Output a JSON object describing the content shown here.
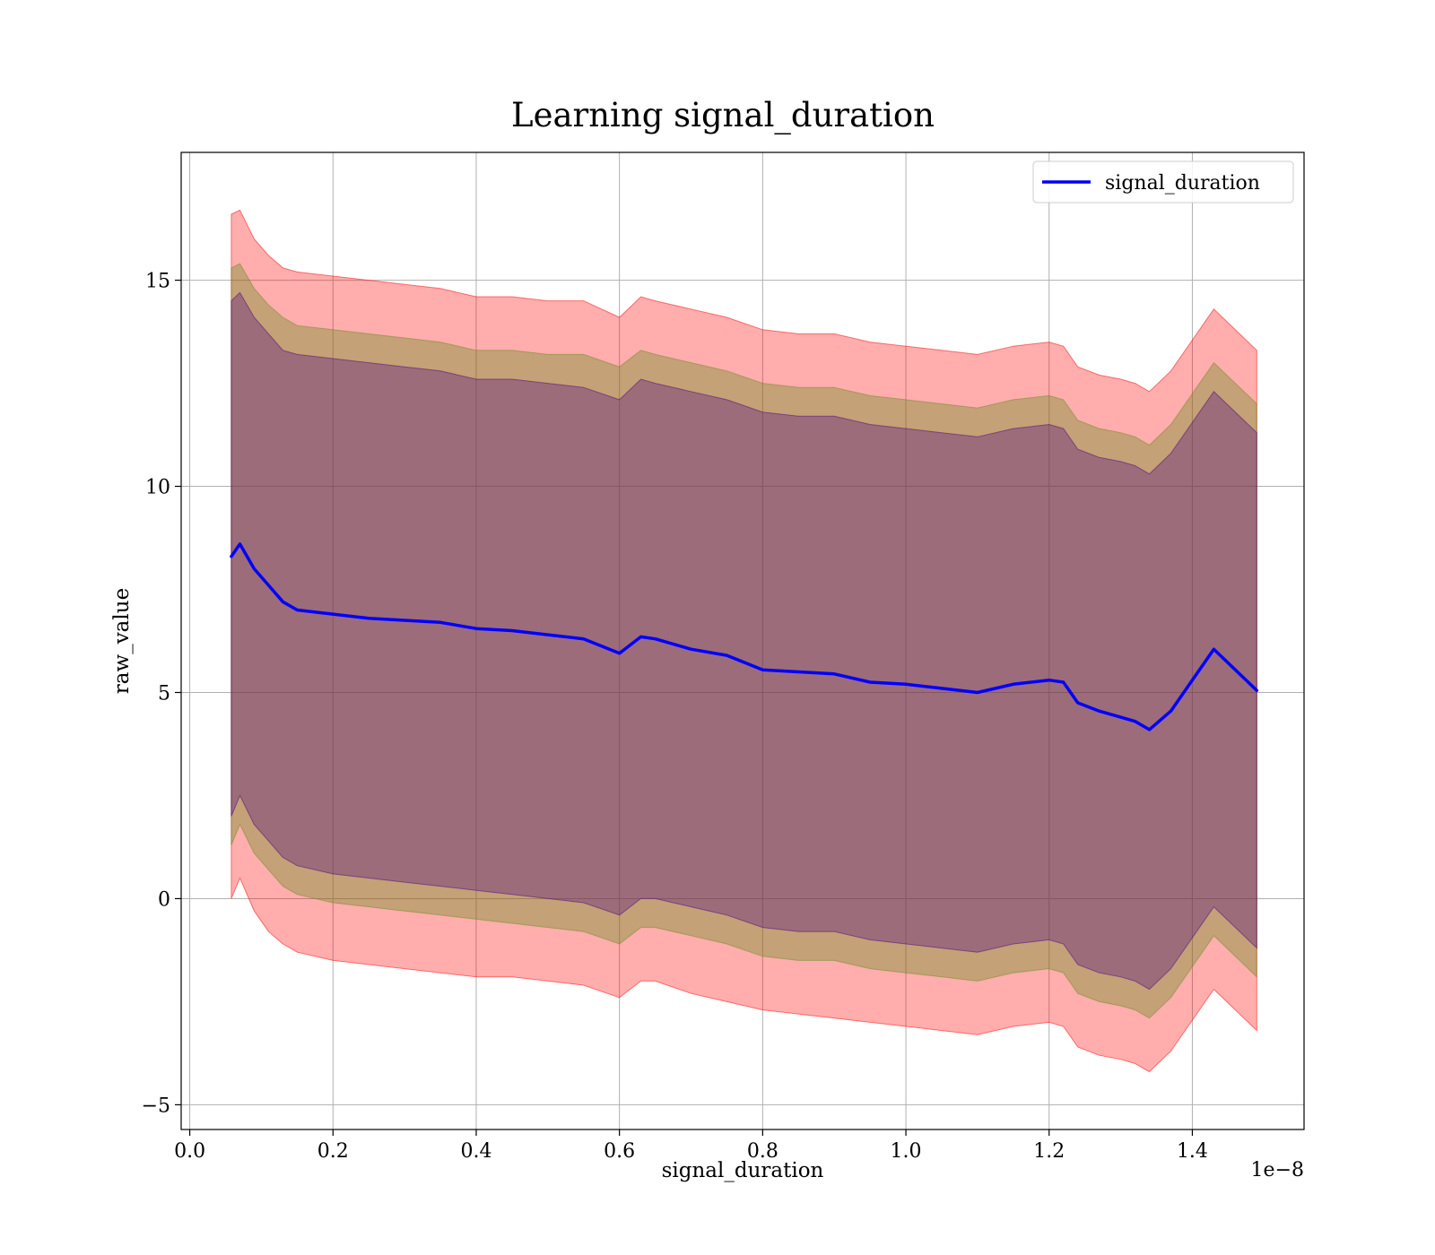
{
  "chart_data": {
    "type": "line",
    "title": "Learning signal_duration",
    "xlabel": "signal_duration",
    "ylabel": "raw_value",
    "x_offset_label": "1e−8",
    "x_scale": 1e-08,
    "xlim": [
      -0.012,
      1.556
    ],
    "ylim": [
      -5.6,
      18.1
    ],
    "x_ticks": [
      0.0,
      0.2,
      0.4,
      0.6,
      0.8,
      1.0,
      1.2,
      1.4
    ],
    "x_tick_labels": [
      "0.0",
      "0.2",
      "0.4",
      "0.6",
      "0.8",
      "1.0",
      "1.2",
      "1.4"
    ],
    "y_ticks": [
      -5,
      0,
      5,
      10,
      15
    ],
    "y_tick_labels": [
      "−5",
      "0",
      "5",
      "10",
      "15"
    ],
    "grid": true,
    "legend_position": "top-right",
    "x": [
      0.058,
      0.07,
      0.09,
      0.11,
      0.13,
      0.15,
      0.2,
      0.25,
      0.3,
      0.35,
      0.4,
      0.45,
      0.5,
      0.55,
      0.6,
      0.63,
      0.65,
      0.7,
      0.75,
      0.8,
      0.85,
      0.9,
      0.95,
      1.0,
      1.05,
      1.1,
      1.15,
      1.2,
      1.22,
      1.24,
      1.27,
      1.3,
      1.32,
      1.34,
      1.37,
      1.43,
      1.49
    ],
    "series": [
      {
        "name": "signal_duration",
        "color": "#0000ff",
        "values": [
          8.3,
          8.6,
          8.0,
          7.6,
          7.2,
          7.0,
          6.9,
          6.8,
          6.75,
          6.7,
          6.55,
          6.5,
          6.4,
          6.3,
          5.95,
          6.35,
          6.3,
          6.05,
          5.9,
          5.55,
          5.5,
          5.45,
          5.25,
          5.2,
          5.1,
          5.0,
          5.2,
          5.3,
          5.25,
          4.75,
          4.55,
          4.4,
          4.3,
          4.1,
          4.55,
          6.05,
          5.05
        ]
      }
    ],
    "bands": [
      {
        "color": "#ff0000",
        "opacity": 0.32,
        "upper": [
          16.6,
          16.7,
          16.0,
          15.6,
          15.3,
          15.2,
          15.1,
          15.0,
          14.9,
          14.8,
          14.6,
          14.6,
          14.5,
          14.5,
          14.1,
          14.6,
          14.5,
          14.3,
          14.1,
          13.8,
          13.7,
          13.7,
          13.5,
          13.4,
          13.3,
          13.2,
          13.4,
          13.5,
          13.4,
          12.9,
          12.7,
          12.6,
          12.5,
          12.3,
          12.8,
          14.3,
          13.3
        ],
        "lower": [
          0.0,
          0.5,
          -0.3,
          -0.8,
          -1.1,
          -1.3,
          -1.5,
          -1.6,
          -1.7,
          -1.8,
          -1.9,
          -1.9,
          -2.0,
          -2.1,
          -2.4,
          -2.0,
          -2.0,
          -2.3,
          -2.5,
          -2.7,
          -2.8,
          -2.9,
          -3.0,
          -3.1,
          -3.2,
          -3.3,
          -3.1,
          -3.0,
          -3.1,
          -3.6,
          -3.8,
          -3.9,
          -4.0,
          -4.2,
          -3.7,
          -2.2,
          -3.2
        ]
      },
      {
        "color": "#6b8e23",
        "opacity": 0.4,
        "upper": [
          15.3,
          15.4,
          14.8,
          14.4,
          14.1,
          13.9,
          13.8,
          13.7,
          13.6,
          13.5,
          13.3,
          13.3,
          13.2,
          13.2,
          12.9,
          13.3,
          13.2,
          13.0,
          12.8,
          12.5,
          12.4,
          12.4,
          12.2,
          12.1,
          12.0,
          11.9,
          12.1,
          12.2,
          12.1,
          11.6,
          11.4,
          11.3,
          11.2,
          11.0,
          11.5,
          13.0,
          12.0
        ],
        "lower": [
          1.3,
          1.8,
          1.1,
          0.7,
          0.3,
          0.1,
          -0.1,
          -0.2,
          -0.3,
          -0.4,
          -0.5,
          -0.6,
          -0.7,
          -0.8,
          -1.1,
          -0.7,
          -0.7,
          -0.9,
          -1.1,
          -1.4,
          -1.5,
          -1.5,
          -1.7,
          -1.8,
          -1.9,
          -2.0,
          -1.8,
          -1.7,
          -1.8,
          -2.3,
          -2.5,
          -2.6,
          -2.7,
          -2.9,
          -2.4,
          -0.9,
          -1.9
        ]
      },
      {
        "color": "#4b0082",
        "opacity": 0.33,
        "upper": [
          14.5,
          14.7,
          14.1,
          13.7,
          13.3,
          13.2,
          13.1,
          13.0,
          12.9,
          12.8,
          12.6,
          12.6,
          12.5,
          12.4,
          12.1,
          12.6,
          12.5,
          12.3,
          12.1,
          11.8,
          11.7,
          11.7,
          11.5,
          11.4,
          11.3,
          11.2,
          11.4,
          11.5,
          11.4,
          10.9,
          10.7,
          10.6,
          10.5,
          10.3,
          10.8,
          12.3,
          11.3
        ],
        "lower": [
          2.0,
          2.5,
          1.8,
          1.4,
          1.0,
          0.8,
          0.6,
          0.5,
          0.4,
          0.3,
          0.2,
          0.1,
          0.0,
          -0.1,
          -0.4,
          0.0,
          0.0,
          -0.2,
          -0.4,
          -0.7,
          -0.8,
          -0.8,
          -1.0,
          -1.1,
          -1.2,
          -1.3,
          -1.1,
          -1.0,
          -1.1,
          -1.6,
          -1.8,
          -1.9,
          -2.0,
          -2.2,
          -1.7,
          -0.2,
          -1.2
        ]
      }
    ]
  }
}
